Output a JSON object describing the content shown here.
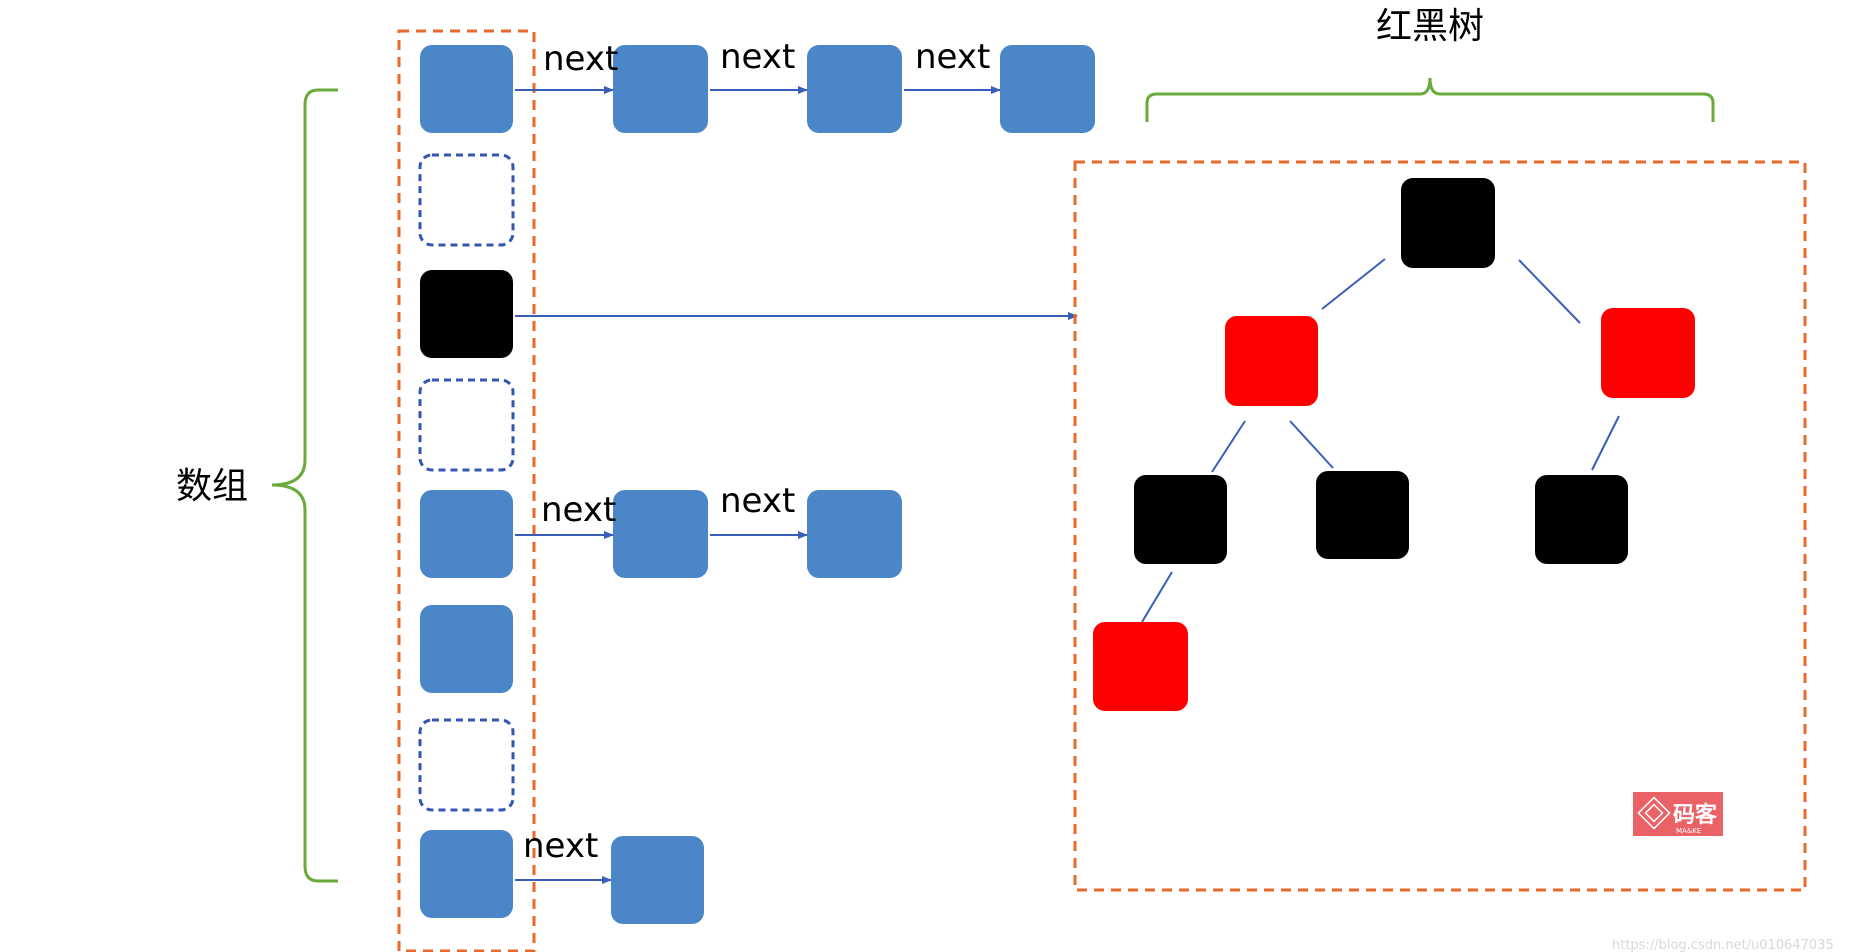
{
  "labels": {
    "array": "数组",
    "tree": "红黑树",
    "link": "next"
  },
  "logo": {
    "text": "码客",
    "subtext": "MA&KE"
  },
  "watermark": "https://blog.csdn.net/u010647035",
  "colors": {
    "node_blue": "#4A86C8",
    "node_black": "#000000",
    "node_red": "#FF0000",
    "arrow_blue": "#3A5DB8",
    "empty_slot_border": "#3456B0",
    "frame_orange": "#E8692A",
    "brace_green": "#6AAA3A",
    "logo_red": "#E8474B"
  },
  "array_slots": [
    {
      "state": "filled",
      "kind": "linked-list",
      "chain_length": 4
    },
    {
      "state": "empty"
    },
    {
      "state": "tree-root"
    },
    {
      "state": "empty"
    },
    {
      "state": "filled",
      "kind": "linked-list",
      "chain_length": 3
    },
    {
      "state": "filled"
    },
    {
      "state": "empty"
    },
    {
      "state": "filled",
      "kind": "linked-list",
      "chain_length": 2
    }
  ],
  "tree_nodes": [
    {
      "id": "root",
      "color": "black"
    },
    {
      "id": "L",
      "color": "red"
    },
    {
      "id": "R",
      "color": "red"
    },
    {
      "id": "LL",
      "color": "black"
    },
    {
      "id": "LR",
      "color": "black"
    },
    {
      "id": "RL",
      "color": "black"
    },
    {
      "id": "LLL",
      "color": "red"
    }
  ],
  "tree_edges": [
    [
      "root",
      "L"
    ],
    [
      "root",
      "R"
    ],
    [
      "L",
      "LL"
    ],
    [
      "L",
      "LR"
    ],
    [
      "R",
      "RL"
    ],
    [
      "LL",
      "LLL"
    ]
  ]
}
